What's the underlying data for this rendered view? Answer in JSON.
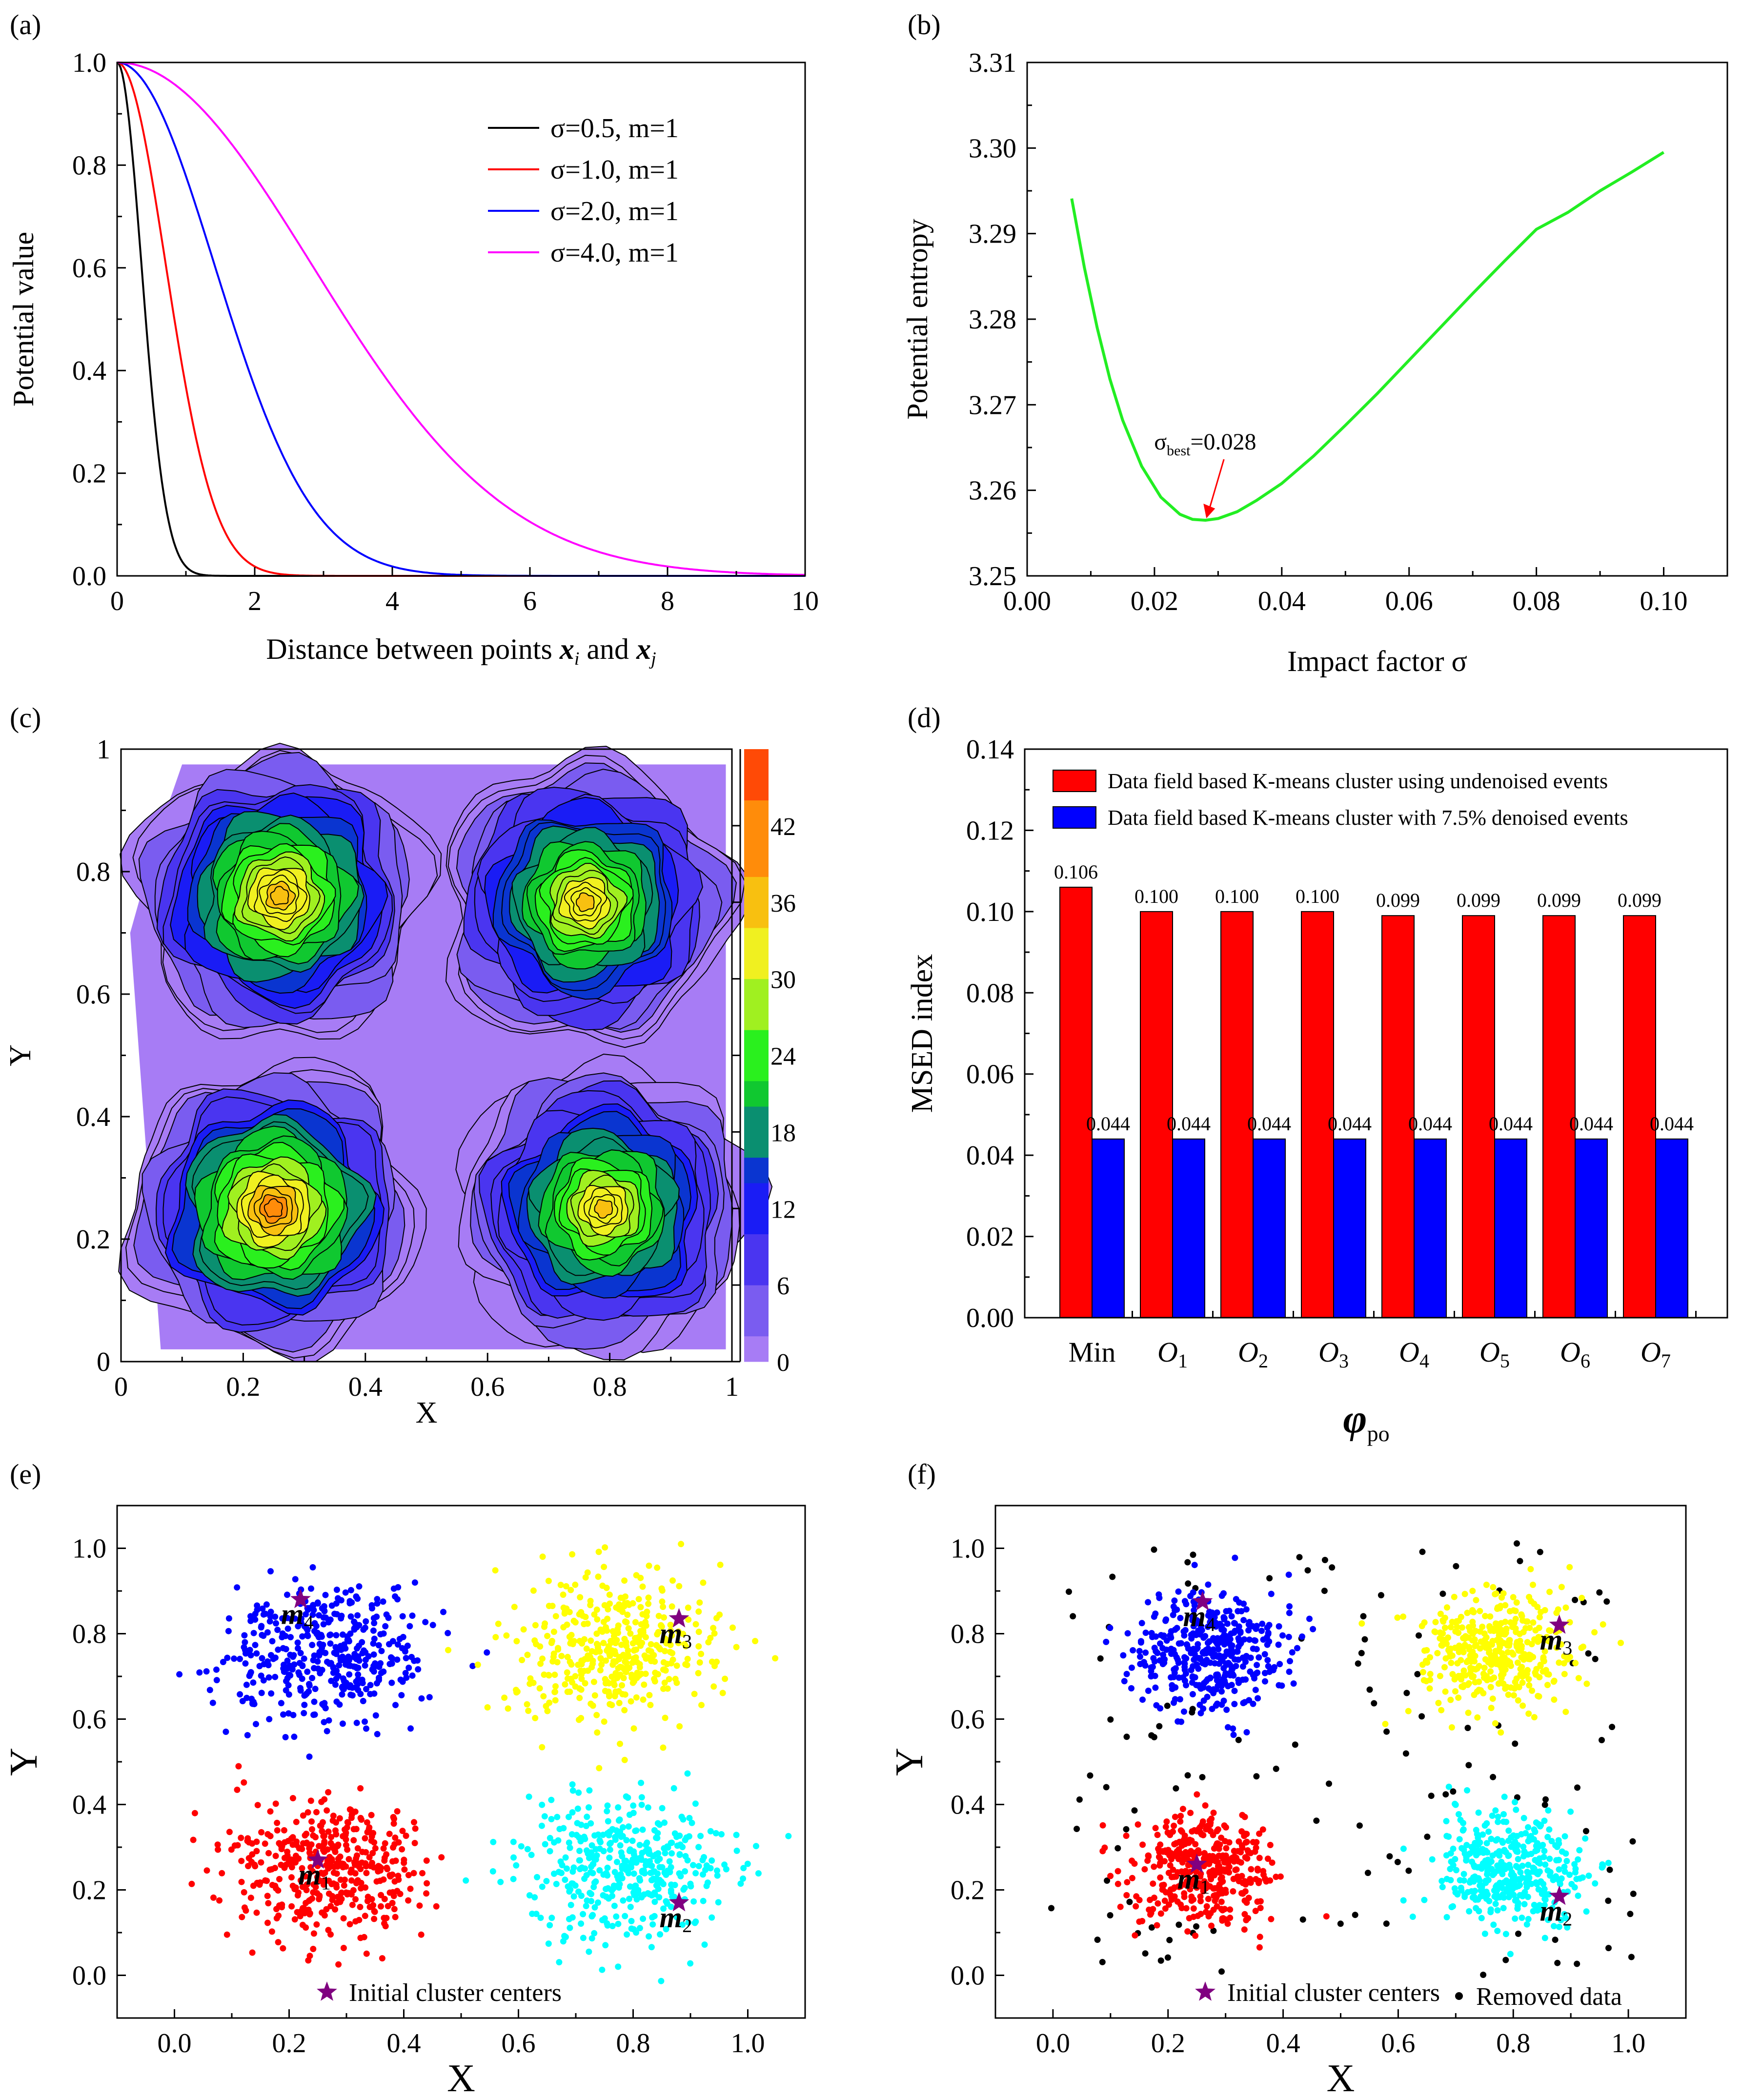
{
  "colors": {
    "black": "#000000",
    "red": "#ff0000",
    "blue": "#0000ff",
    "magenta": "#ff00ff",
    "green": "#22ee22",
    "yellow": "#ffff00",
    "cyan": "#00ffff",
    "star": "#800080",
    "arrow": "#ff0000",
    "contour_fill": "#a77cf5"
  },
  "panels": [
    "(a)",
    "(b)",
    "(c)",
    "(d)",
    "(e)",
    "(f)"
  ],
  "chart_data": [
    {
      "id": "a",
      "type": "line",
      "title": "",
      "xlabel_prefix": "Distance between points ",
      "xlabel_x": "x",
      "xlabel_i": "i",
      "xlabel_and": " and ",
      "xlabel_j": "j",
      "ylabel": "Potential value",
      "xlim": [
        0,
        10
      ],
      "ylim": [
        0,
        1
      ],
      "xticks": [
        "0",
        "2",
        "4",
        "6",
        "8",
        "10"
      ],
      "yticks": [
        "0.0",
        "0.2",
        "0.4",
        "0.6",
        "0.8",
        "1.0"
      ],
      "model": "exp(-(d/sigma)^2)",
      "series": [
        {
          "name": "σ=0.5, m=1",
          "sigma": 0.5,
          "color": "#000000"
        },
        {
          "name": "σ=1.0, m=1",
          "sigma": 1.0,
          "color": "#ff0000"
        },
        {
          "name": "σ=2.0, m=1",
          "sigma": 2.0,
          "color": "#0000ff"
        },
        {
          "name": "σ=4.0, m=1",
          "sigma": 4.0,
          "color": "#ff00ff"
        }
      ],
      "legend": "top-right"
    },
    {
      "id": "b",
      "type": "line",
      "xlabel": "Impact factor σ",
      "ylabel": "Potential entropy",
      "xlim": [
        0,
        0.11
      ],
      "ylim": [
        3.25,
        3.31
      ],
      "xticks": [
        "0.00",
        "0.02",
        "0.04",
        "0.06",
        "0.08",
        "0.10"
      ],
      "yticks": [
        "3.25",
        "3.26",
        "3.27",
        "3.28",
        "3.29",
        "3.30",
        "3.31"
      ],
      "x": [
        0.007,
        0.009,
        0.011,
        0.013,
        0.015,
        0.018,
        0.021,
        0.024,
        0.026,
        0.028,
        0.03,
        0.033,
        0.036,
        0.04,
        0.045,
        0.05,
        0.055,
        0.06,
        0.065,
        0.07,
        0.075,
        0.08,
        0.085,
        0.09,
        0.095,
        0.1
      ],
      "y": [
        3.2941,
        3.286,
        3.279,
        3.273,
        3.2682,
        3.2628,
        3.2592,
        3.2572,
        3.2566,
        3.2565,
        3.2567,
        3.2575,
        3.2588,
        3.2608,
        3.264,
        3.2676,
        3.2713,
        3.2752,
        3.2791,
        3.283,
        3.2868,
        3.2905,
        3.2925,
        3.295,
        3.2972,
        3.2995
      ],
      "series_color": "#22ee22",
      "annotation_base": "σ",
      "annotation_sub": "best",
      "annotation_value": "=0.028",
      "annotation_point": [
        0.028,
        3.2565
      ]
    },
    {
      "id": "c",
      "type": "heatmap",
      "xlabel": "X",
      "ylabel": "Y",
      "xlim": [
        0,
        1
      ],
      "ylim": [
        0,
        1
      ],
      "xticks": [
        "0",
        "0.2",
        "0.4",
        "0.6",
        "0.8",
        "1"
      ],
      "yticks": [
        "0",
        "0.2",
        "0.4",
        "0.6",
        "0.8",
        "1"
      ],
      "colorbar_ticks": [
        "0",
        "6",
        "12",
        "18",
        "24",
        "30",
        "36",
        "42"
      ],
      "colorbar_range": [
        0,
        48
      ],
      "peaks": [
        {
          "x": 0.26,
          "y": 0.76,
          "value": 40
        },
        {
          "x": 0.76,
          "y": 0.75,
          "value": 38
        },
        {
          "x": 0.25,
          "y": 0.25,
          "value": 44
        },
        {
          "x": 0.79,
          "y": 0.25,
          "value": 37
        }
      ]
    },
    {
      "id": "d",
      "type": "bar",
      "xlabel_base": "φ",
      "xlabel_sub": "po",
      "ylabel": "MSED index",
      "ylim": [
        0,
        0.14
      ],
      "yticks": [
        "0.00",
        "0.02",
        "0.04",
        "0.06",
        "0.08",
        "0.10",
        "0.12",
        "0.14"
      ],
      "categories": [
        {
          "base": "Min",
          "sub": ""
        },
        {
          "base": "O",
          "sub": "1"
        },
        {
          "base": "O",
          "sub": "2"
        },
        {
          "base": "O",
          "sub": "3"
        },
        {
          "base": "O",
          "sub": "4"
        },
        {
          "base": "O",
          "sub": "5"
        },
        {
          "base": "O",
          "sub": "6"
        },
        {
          "base": "O",
          "sub": "7"
        }
      ],
      "series": [
        {
          "name": "Data field based K-means cluster using undenoised events",
          "color": "#ff0000",
          "values": [
            0.106,
            0.1,
            0.1,
            0.1,
            0.099,
            0.099,
            0.099,
            0.099
          ],
          "labels": [
            "0.106",
            "0.100",
            "0.100",
            "0.100",
            "0.099",
            "0.099",
            "0.099",
            "0.099"
          ]
        },
        {
          "name": "Data field based K-means cluster with 7.5% denoised events",
          "color": "#0000ff",
          "values": [
            0.044,
            0.044,
            0.044,
            0.044,
            0.044,
            0.044,
            0.044,
            0.044
          ],
          "labels": [
            "0.044",
            "0.044",
            "0.044",
            "0.044",
            "0.044",
            "0.044",
            "0.044",
            "0.044"
          ]
        }
      ],
      "legend": "top"
    },
    {
      "id": "e",
      "type": "scatter",
      "xlabel": "X",
      "ylabel": "Y",
      "xlim": [
        -0.1,
        1.1
      ],
      "ylim": [
        -0.1,
        1.1
      ],
      "xticks": [
        "0.0",
        "0.2",
        "0.4",
        "0.6",
        "0.8",
        "1.0"
      ],
      "yticks": [
        "0.0",
        "0.2",
        "0.4",
        "0.6",
        "0.8",
        "1.0"
      ],
      "clusters": [
        {
          "color": "#0000ff",
          "center": [
            0.27,
            0.76
          ],
          "spread": 0.085,
          "count": 420
        },
        {
          "color": "#ffff00",
          "center": [
            0.77,
            0.76
          ],
          "spread": 0.085,
          "count": 420
        },
        {
          "color": "#ff0000",
          "center": [
            0.26,
            0.25
          ],
          "spread": 0.085,
          "count": 420
        },
        {
          "color": "#00ffff",
          "center": [
            0.79,
            0.25
          ],
          "spread": 0.085,
          "count": 420
        }
      ],
      "centers": [
        {
          "label": "m",
          "sub": "4",
          "x": 0.22,
          "y": 0.88
        },
        {
          "label": "m",
          "sub": "3",
          "x": 0.88,
          "y": 0.835
        },
        {
          "label": "m",
          "sub": "1",
          "x": 0.25,
          "y": 0.27
        },
        {
          "label": "m",
          "sub": "2",
          "x": 0.88,
          "y": 0.17
        }
      ],
      "legend_stars": "Initial cluster centers"
    },
    {
      "id": "f",
      "type": "scatter",
      "xlabel": "X",
      "ylabel": "Y",
      "xlim": [
        -0.1,
        1.1
      ],
      "ylim": [
        -0.1,
        1.1
      ],
      "xticks": [
        "0.0",
        "0.2",
        "0.4",
        "0.6",
        "0.8",
        "1.0"
      ],
      "yticks": [
        "0.0",
        "0.2",
        "0.4",
        "0.6",
        "0.8",
        "1.0"
      ],
      "clusters": [
        {
          "color": "#0000ff",
          "center": [
            0.27,
            0.76
          ],
          "spread": 0.065,
          "count": 400
        },
        {
          "color": "#ffff00",
          "center": [
            0.77,
            0.76
          ],
          "spread": 0.065,
          "count": 400
        },
        {
          "color": "#ff0000",
          "center": [
            0.26,
            0.25
          ],
          "spread": 0.065,
          "count": 400
        },
        {
          "color": "#00ffff",
          "center": [
            0.79,
            0.25
          ],
          "spread": 0.065,
          "count": 400
        }
      ],
      "removed_count": 130,
      "centers": [
        {
          "label": "m",
          "sub": "4",
          "x": 0.26,
          "y": 0.875
        },
        {
          "label": "m",
          "sub": "3",
          "x": 0.88,
          "y": 0.82
        },
        {
          "label": "m",
          "sub": "1",
          "x": 0.25,
          "y": 0.26
        },
        {
          "label": "m",
          "sub": "2",
          "x": 0.88,
          "y": 0.185
        }
      ],
      "legend_stars": "Initial cluster centers",
      "legend_removed": "Removed data"
    }
  ]
}
